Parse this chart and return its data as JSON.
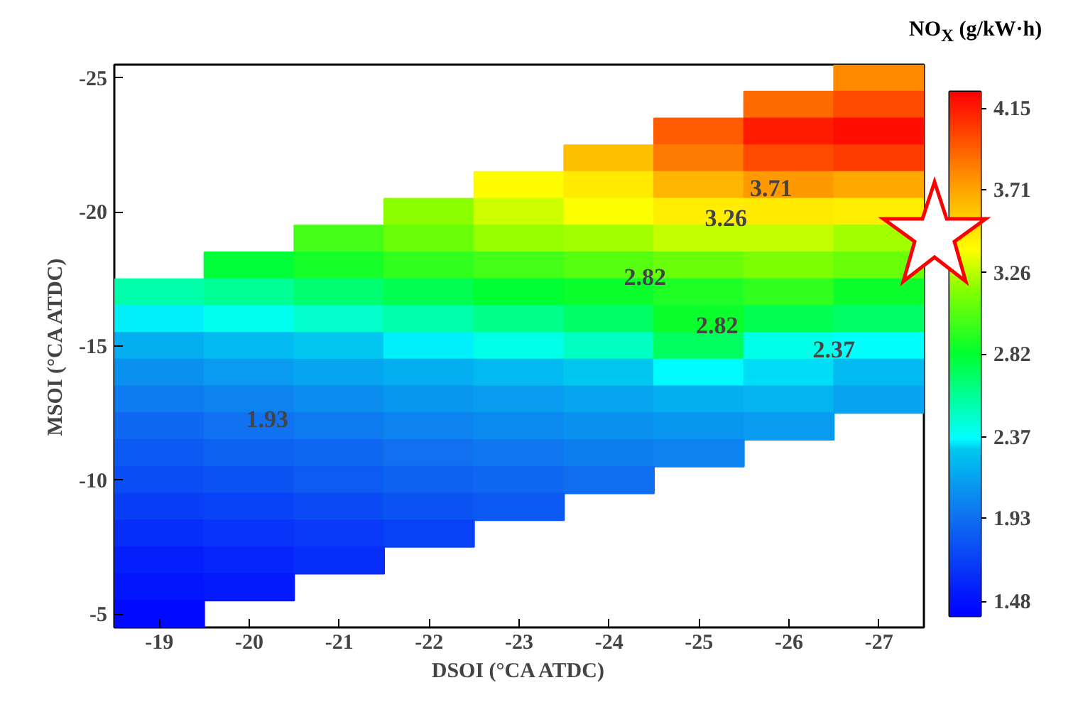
{
  "chart_data": {
    "type": "heatmap",
    "xlabel": "DSOI (°CA ATDC)",
    "ylabel": "MSOI (°CA ATDC)",
    "clabel": "NO$_{X}$ (g/kW·h)",
    "categories": [
      "-19",
      "-20",
      "-21",
      "-22",
      "-23",
      "-24",
      "-25",
      "-26",
      "-27"
    ],
    "y_categories": [
      "-25",
      null,
      null,
      null,
      null,
      "-20",
      null,
      null,
      null,
      null,
      "-15",
      null,
      null,
      null,
      null,
      "-10",
      null,
      null,
      null,
      null,
      "-5"
    ],
    "clim": [
      1.4,
      4.24
    ],
    "cticks": [
      1.48,
      1.93,
      2.37,
      2.82,
      3.26,
      3.71,
      4.15
    ],
    "cells": [
      [
        null,
        null,
        null,
        null,
        null,
        null,
        null,
        null,
        3.8
      ],
      [
        null,
        null,
        null,
        null,
        null,
        null,
        null,
        3.9,
        4.0
      ],
      [
        null,
        null,
        null,
        null,
        null,
        null,
        3.95,
        4.15,
        4.2
      ],
      [
        null,
        null,
        null,
        null,
        null,
        3.62,
        3.85,
        4.0,
        4.05
      ],
      [
        null,
        null,
        null,
        null,
        3.4,
        3.46,
        3.65,
        3.75,
        3.7
      ],
      [
        null,
        null,
        null,
        3.18,
        3.3,
        3.38,
        3.45,
        3.46,
        3.45
      ],
      [
        null,
        null,
        3.0,
        3.1,
        3.2,
        3.22,
        3.28,
        3.28,
        3.22
      ],
      [
        null,
        2.8,
        2.88,
        2.95,
        3.0,
        3.05,
        3.1,
        3.15,
        3.1
      ],
      [
        2.55,
        2.6,
        2.68,
        2.75,
        2.82,
        2.85,
        2.9,
        2.95,
        2.85
      ],
      [
        2.35,
        2.4,
        2.48,
        2.55,
        2.62,
        2.7,
        2.85,
        2.75,
        2.7
      ],
      [
        2.2,
        2.25,
        2.3,
        2.35,
        2.42,
        2.5,
        2.72,
        2.42,
        2.37
      ],
      [
        2.08,
        2.12,
        2.16,
        2.2,
        2.25,
        2.3,
        2.36,
        2.33,
        2.25
      ],
      [
        1.98,
        2.02,
        2.06,
        2.1,
        2.13,
        2.16,
        2.2,
        2.22,
        2.15
      ],
      [
        1.9,
        1.95,
        1.98,
        2.02,
        2.05,
        2.08,
        2.1,
        2.12,
        null
      ],
      [
        1.83,
        1.87,
        1.9,
        1.94,
        1.97,
        2.0,
        2.02,
        null,
        null
      ],
      [
        1.77,
        1.8,
        1.84,
        1.87,
        1.9,
        1.93,
        null,
        null,
        null
      ],
      [
        1.7,
        1.72,
        1.76,
        1.8,
        1.83,
        null,
        null,
        null,
        null
      ],
      [
        1.62,
        1.65,
        1.68,
        1.72,
        null,
        null,
        null,
        null,
        null
      ],
      [
        1.55,
        1.58,
        1.62,
        null,
        null,
        null,
        null,
        null,
        null
      ],
      [
        1.5,
        1.52,
        null,
        null,
        null,
        null,
        null,
        null,
        null
      ],
      [
        1.45,
        null,
        null,
        null,
        null,
        null,
        null,
        null,
        null
      ]
    ],
    "annotations": [
      "3.71",
      "3.26",
      "2.82",
      "2.82",
      "2.37",
      "1.93"
    ],
    "grid": false
  }
}
